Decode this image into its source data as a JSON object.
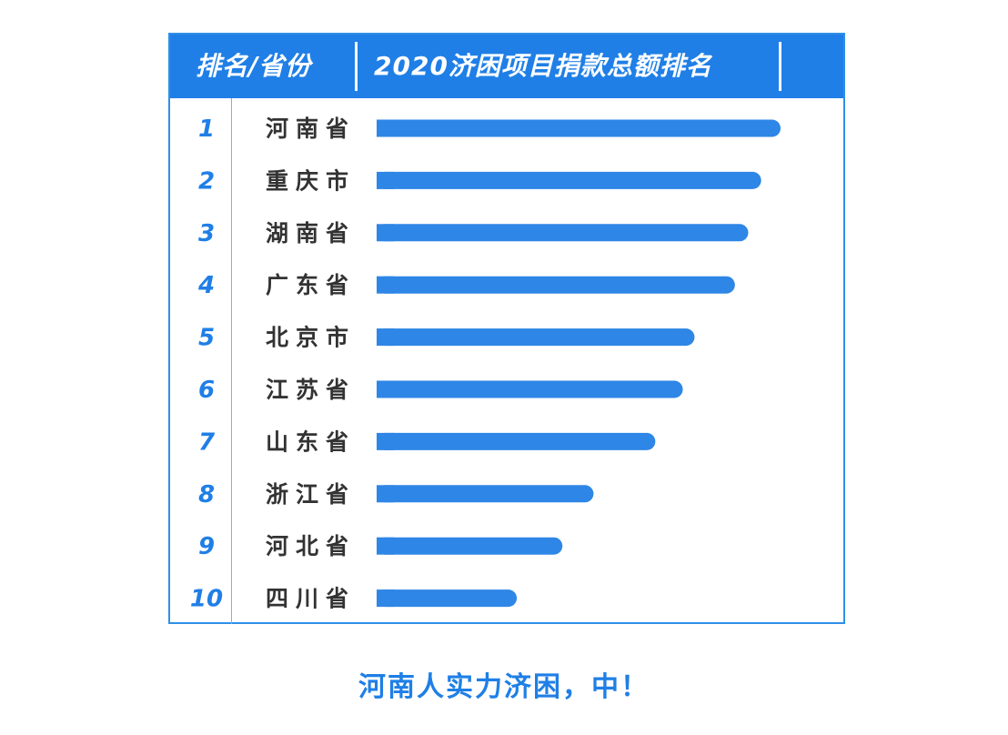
{
  "header": {
    "left_label": "排名/省份",
    "right_label": "2020济困项目捐款总额排名"
  },
  "caption": "河南人实力济困，中！",
  "colors": {
    "accent": "#1f7fe6",
    "bar": "#2e86e6",
    "province_text": "#333333"
  },
  "chart_data": {
    "type": "bar",
    "orientation": "horizontal",
    "title": "2020济困项目捐款总额排名",
    "ranks": [
      "1",
      "2",
      "3",
      "4",
      "5",
      "6",
      "7",
      "8",
      "9",
      "10"
    ],
    "categories": [
      "河南省",
      "重庆市",
      "湖南省",
      "广东省",
      "北京市",
      "江苏省",
      "山东省",
      "浙江省",
      "河北省",
      "四川省"
    ],
    "values": [
      1.0,
      0.952,
      0.92,
      0.887,
      0.787,
      0.758,
      0.69,
      0.537,
      0.46,
      0.347
    ],
    "value_scale": "relative to rank 1 (no numeric axis printed)",
    "axis_labels_shown": false,
    "grid": false,
    "legend": "none"
  }
}
